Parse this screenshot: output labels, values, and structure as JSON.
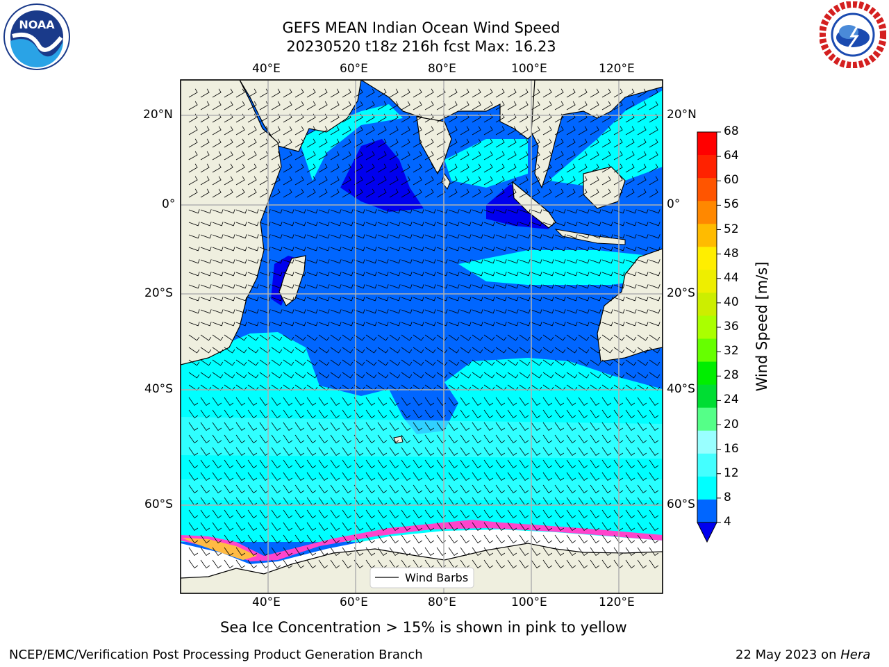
{
  "title": {
    "line1": "GEFS MEAN Indian Ocean Wind Speed",
    "line2": "20230520 t18z 216h fcst   Max: 16.23"
  },
  "map": {
    "lon_labels": [
      "40°E",
      "60°E",
      "80°E",
      "100°E",
      "120°E"
    ],
    "lat_labels": [
      "20°N",
      "0°",
      "20°S",
      "40°S",
      "60°S"
    ],
    "legend_label": "Wind Barbs",
    "colors": {
      "land": "#efefdf",
      "ice_background": "#ffffff",
      "wind_4_8": "#0066ff",
      "wind_0_4": "#0000ee",
      "wind_8_12": "#00ffff",
      "wind_12_16": "#44ffff",
      "ice": "#ff44cc"
    }
  },
  "colorbar": {
    "label": "Wind Speed [m/s]",
    "ticks": [
      "68",
      "64",
      "60",
      "56",
      "52",
      "48",
      "44",
      "40",
      "36",
      "32",
      "28",
      "24",
      "20",
      "16",
      "12",
      "8",
      "4"
    ],
    "colors": [
      "#ff0000",
      "#ff2200",
      "#ff5500",
      "#ff8800",
      "#ffbb00",
      "#ffee00",
      "#eeee00",
      "#ccee00",
      "#aaff00",
      "#66ff00",
      "#00ee00",
      "#00dd33",
      "#55ff88",
      "#99ffff",
      "#44ffff",
      "#00ffff",
      "#0066ff"
    ],
    "under_color": "#0000ee"
  },
  "subtitle": "Sea Ice Concentration > 15% is shown in pink to yellow",
  "footer": {
    "left": "NCEP/EMC/Verification Post Processing Product Generation Branch",
    "right_prefix": "22 May 2023 on ",
    "right_machine": "Hera"
  },
  "logos": {
    "noaa_text": "NOAA",
    "nws_text": "NATIONAL WEATHER SERVICE"
  }
}
